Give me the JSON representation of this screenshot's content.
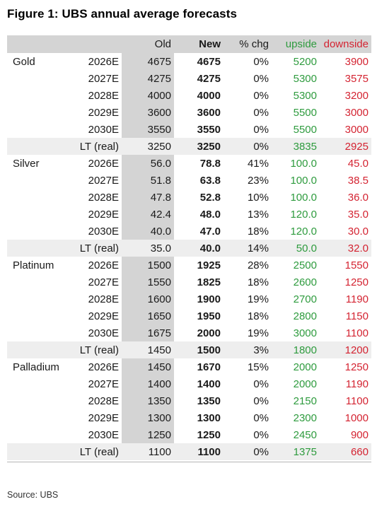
{
  "figure": {
    "title": "Figure 1: UBS annual average forecasts",
    "source": "Source: UBS"
  },
  "table": {
    "headers": [
      "",
      "",
      "Old",
      "New",
      "% chg",
      "upside",
      "downside"
    ],
    "colors": {
      "upside": "#2e9b3e",
      "downside": "#d42331",
      "shade": "#d4d4d4",
      "lt_shade": "#eeeeee"
    },
    "groups": [
      {
        "metal": "Gold",
        "rows": [
          {
            "period": "2026E",
            "old": "4675",
            "new": "4675",
            "chg": "0%",
            "upside": "5200",
            "downside": "3900"
          },
          {
            "period": "2027E",
            "old": "4275",
            "new": "4275",
            "chg": "0%",
            "upside": "5300",
            "downside": "3575"
          },
          {
            "period": "2028E",
            "old": "4000",
            "new": "4000",
            "chg": "0%",
            "upside": "5300",
            "downside": "3200"
          },
          {
            "period": "2029E",
            "old": "3600",
            "new": "3600",
            "chg": "0%",
            "upside": "5500",
            "downside": "3000"
          },
          {
            "period": "2030E",
            "old": "3550",
            "new": "3550",
            "chg": "0%",
            "upside": "5500",
            "downside": "3000"
          },
          {
            "period": "LT (real)",
            "old": "3250",
            "new": "3250",
            "chg": "0%",
            "upside": "3835",
            "downside": "2925"
          }
        ]
      },
      {
        "metal": "Silver",
        "rows": [
          {
            "period": "2026E",
            "old": "56.0",
            "new": "78.8",
            "chg": "41%",
            "upside": "100.0",
            "downside": "45.0"
          },
          {
            "period": "2027E",
            "old": "51.8",
            "new": "63.8",
            "chg": "23%",
            "upside": "100.0",
            "downside": "38.5"
          },
          {
            "period": "2028E",
            "old": "47.8",
            "new": "52.8",
            "chg": "10%",
            "upside": "100.0",
            "downside": "36.0"
          },
          {
            "period": "2029E",
            "old": "42.4",
            "new": "48.0",
            "chg": "13%",
            "upside": "120.0",
            "downside": "35.0"
          },
          {
            "period": "2030E",
            "old": "40.0",
            "new": "47.0",
            "chg": "18%",
            "upside": "120.0",
            "downside": "30.0"
          },
          {
            "period": "LT (real)",
            "old": "35.0",
            "new": "40.0",
            "chg": "14%",
            "upside": "50.0",
            "downside": "32.0"
          }
        ]
      },
      {
        "metal": "Platinum",
        "rows": [
          {
            "period": "2026E",
            "old": "1500",
            "new": "1925",
            "chg": "28%",
            "upside": "2500",
            "downside": "1550"
          },
          {
            "period": "2027E",
            "old": "1550",
            "new": "1825",
            "chg": "18%",
            "upside": "2600",
            "downside": "1250"
          },
          {
            "period": "2028E",
            "old": "1600",
            "new": "1900",
            "chg": "19%",
            "upside": "2700",
            "downside": "1190"
          },
          {
            "period": "2029E",
            "old": "1650",
            "new": "1950",
            "chg": "18%",
            "upside": "2800",
            "downside": "1150"
          },
          {
            "period": "2030E",
            "old": "1675",
            "new": "2000",
            "chg": "19%",
            "upside": "3000",
            "downside": "1100"
          },
          {
            "period": "LT (real)",
            "old": "1450",
            "new": "1500",
            "chg": "3%",
            "upside": "1800",
            "downside": "1200"
          }
        ]
      },
      {
        "metal": "Palladium",
        "rows": [
          {
            "period": "2026E",
            "old": "1450",
            "new": "1670",
            "chg": "15%",
            "upside": "2000",
            "downside": "1250"
          },
          {
            "period": "2027E",
            "old": "1400",
            "new": "1400",
            "chg": "0%",
            "upside": "2000",
            "downside": "1190"
          },
          {
            "period": "2028E",
            "old": "1350",
            "new": "1350",
            "chg": "0%",
            "upside": "2150",
            "downside": "1100"
          },
          {
            "period": "2029E",
            "old": "1300",
            "new": "1300",
            "chg": "0%",
            "upside": "2300",
            "downside": "1000"
          },
          {
            "period": "2030E",
            "old": "1250",
            "new": "1250",
            "chg": "0%",
            "upside": "2450",
            "downside": "900"
          },
          {
            "period": "LT (real)",
            "old": "1100",
            "new": "1100",
            "chg": "0%",
            "upside": "1375",
            "downside": "660"
          }
        ]
      }
    ]
  }
}
